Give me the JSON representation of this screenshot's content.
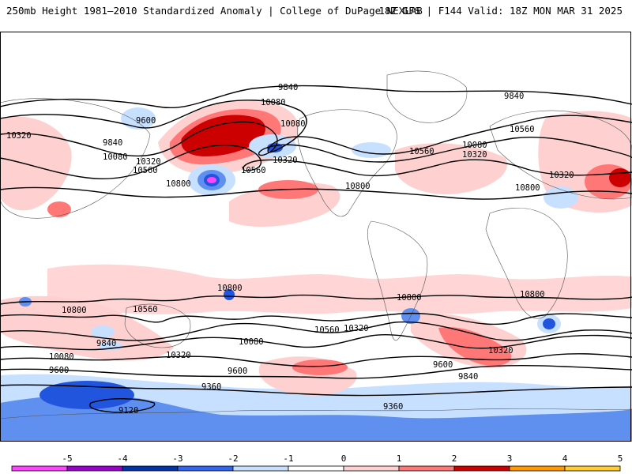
{
  "header": {
    "title": "250mb Height 1981–2010 Standardized Anomaly | College of DuPage NEXLAB",
    "run_info": "18Z GFS | F144 Valid: 18Z MON MAR 31 2025"
  },
  "contours": [
    {
      "label": "9840"
    },
    {
      "label": "9840"
    },
    {
      "label": "9840"
    },
    {
      "label": "9840"
    },
    {
      "label": "9840"
    },
    {
      "label": "9600"
    },
    {
      "label": "9600"
    },
    {
      "label": "9600"
    },
    {
      "label": "9600"
    },
    {
      "label": "10080"
    },
    {
      "label": "10080"
    },
    {
      "label": "10080"
    },
    {
      "label": "10080"
    },
    {
      "label": "10080"
    },
    {
      "label": "10080"
    },
    {
      "label": "10320"
    },
    {
      "label": "10320"
    },
    {
      "label": "10320"
    },
    {
      "label": "10320"
    },
    {
      "label": "10320"
    },
    {
      "label": "10320"
    },
    {
      "label": "10320"
    },
    {
      "label": "10320"
    },
    {
      "label": "10560"
    },
    {
      "label": "10560"
    },
    {
      "label": "10560"
    },
    {
      "label": "10560"
    },
    {
      "label": "10560"
    },
    {
      "label": "10560"
    },
    {
      "label": "10800"
    },
    {
      "label": "10800"
    },
    {
      "label": "10800"
    },
    {
      "label": "10800"
    },
    {
      "label": "10800"
    },
    {
      "label": "10800"
    },
    {
      "label": "10800"
    },
    {
      "label": "9360"
    },
    {
      "label": "9360"
    },
    {
      "label": "9120"
    }
  ],
  "colorbar": {
    "ticks": [
      "-5",
      "-4",
      "-3",
      "-2",
      "-1",
      "0",
      "1",
      "2",
      "3",
      "4",
      "5"
    ],
    "colors": [
      "#ff44ff",
      "#9900cc",
      "#0033aa",
      "#3366ee",
      "#c8e0ff",
      "#ffffff",
      "#ffd0d0",
      "#ff7777",
      "#cc0000",
      "#ff9900",
      "#ffcc33"
    ]
  },
  "colors": {
    "neg_weak": "#c8e0ff",
    "neg_mod": "#7aaaf5",
    "neg_strong": "#2255dd",
    "neg_extreme": "#ff44ff",
    "pos_weak": "#ffd0d0",
    "pos_mod": "#ff7777",
    "pos_strong": "#cc0000"
  }
}
